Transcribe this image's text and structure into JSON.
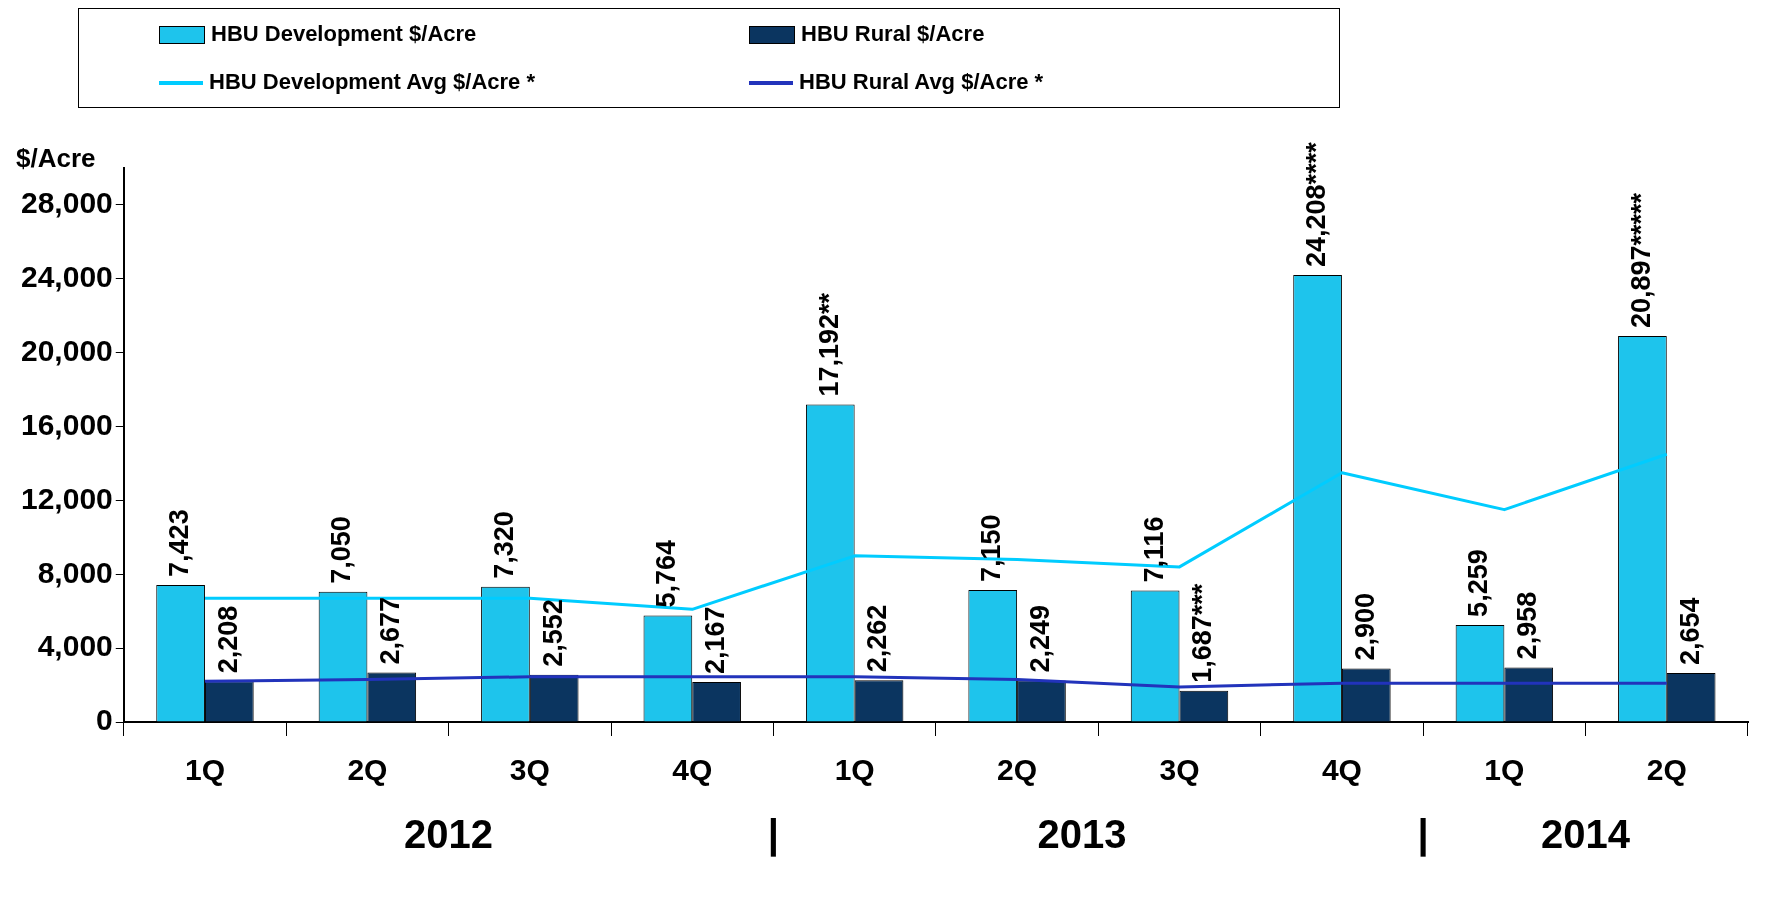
{
  "chart_data": {
    "type": "bar",
    "ylabel": "$/Acre",
    "categories": [
      "1Q",
      "2Q",
      "3Q",
      "4Q",
      "1Q",
      "2Q",
      "3Q",
      "4Q",
      "1Q",
      "2Q"
    ],
    "series": [
      {
        "name": "HBU Development $/Acre",
        "color": "#1ec4ec",
        "values": [
          7423,
          7050,
          7320,
          5764,
          17192,
          7150,
          7116,
          24208,
          5259,
          20897
        ],
        "value_labels": [
          "7,423",
          "7,050",
          "7,320",
          "5,764",
          "17,192**",
          "7,150",
          "7,116",
          "24,208****",
          "5,259",
          "20,897*****"
        ]
      },
      {
        "name": "HBU Rural $/Acre",
        "color": "#0b3560",
        "values": [
          2208,
          2677,
          2552,
          2167,
          2262,
          2249,
          1687,
          2900,
          2958,
          2654
        ],
        "value_labels": [
          "2,208",
          "2,677",
          "2,552",
          "2,167",
          "2,262",
          "2,249",
          "1,687***",
          "2,900",
          "2,958",
          "2,654"
        ]
      },
      {
        "name": "HBU Development Avg $/Acre *",
        "type": "line",
        "color": "#00ccff",
        "values": [
          6700,
          6700,
          6700,
          6100,
          9000,
          8800,
          8400,
          13500,
          11500,
          14500
        ]
      },
      {
        "name": "HBU Rural Avg $/Acre *",
        "type": "line",
        "color": "#2233bb",
        "values": [
          2200,
          2300,
          2450,
          2450,
          2450,
          2300,
          1900,
          2100,
          2100,
          2100
        ]
      }
    ],
    "ylim": [
      0,
      30000
    ],
    "yticks": [
      0,
      {
        "value": 4000,
        "label": "4,000"
      },
      {
        "value": 8000,
        "label": "8,000"
      },
      {
        "value": 12000,
        "label": "12,000"
      },
      {
        "value": 16000,
        "label": "16,000"
      },
      {
        "value": 20000,
        "label": "20,000"
      },
      {
        "value": 24000,
        "label": "24,000"
      },
      {
        "value": 28000,
        "label": "28,000"
      }
    ],
    "grid": false,
    "legend": "top left",
    "marker": "none",
    "annotations": [
      "2012",
      "|",
      "2013",
      "|",
      "2014"
    ]
  }
}
